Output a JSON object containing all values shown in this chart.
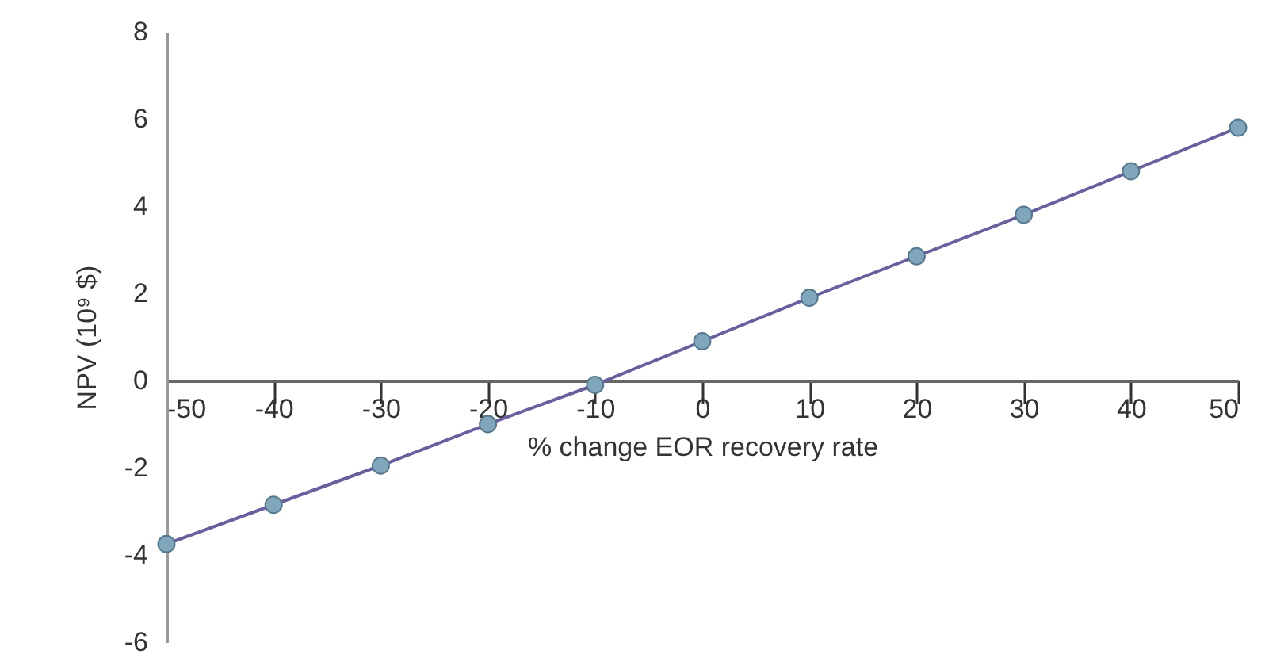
{
  "chart_data": {
    "type": "line",
    "xlabel": "% change EOR recovery rate",
    "ylabel": "NPV (10⁹ $)",
    "x": [
      -50,
      -40,
      -30,
      -20,
      -10,
      0,
      10,
      20,
      30,
      40,
      50
    ],
    "series": [
      {
        "color": "#6a5f9e",
        "values": [
          -3.75,
          -2.85,
          -1.95,
          -1.0,
          -0.1,
          0.9,
          1.9,
          2.85,
          3.8,
          4.8,
          5.8
        ]
      }
    ],
    "xlim": [
      -50,
      50
    ],
    "xticks": [
      -50,
      -40,
      -30,
      -20,
      -10,
      0,
      10,
      20,
      30,
      40,
      50
    ],
    "ylim": [
      -6,
      8
    ],
    "yticks": [
      -6,
      -4,
      -2,
      0,
      2,
      4,
      6,
      8
    ],
    "marker": "circle",
    "grid": false
  }
}
